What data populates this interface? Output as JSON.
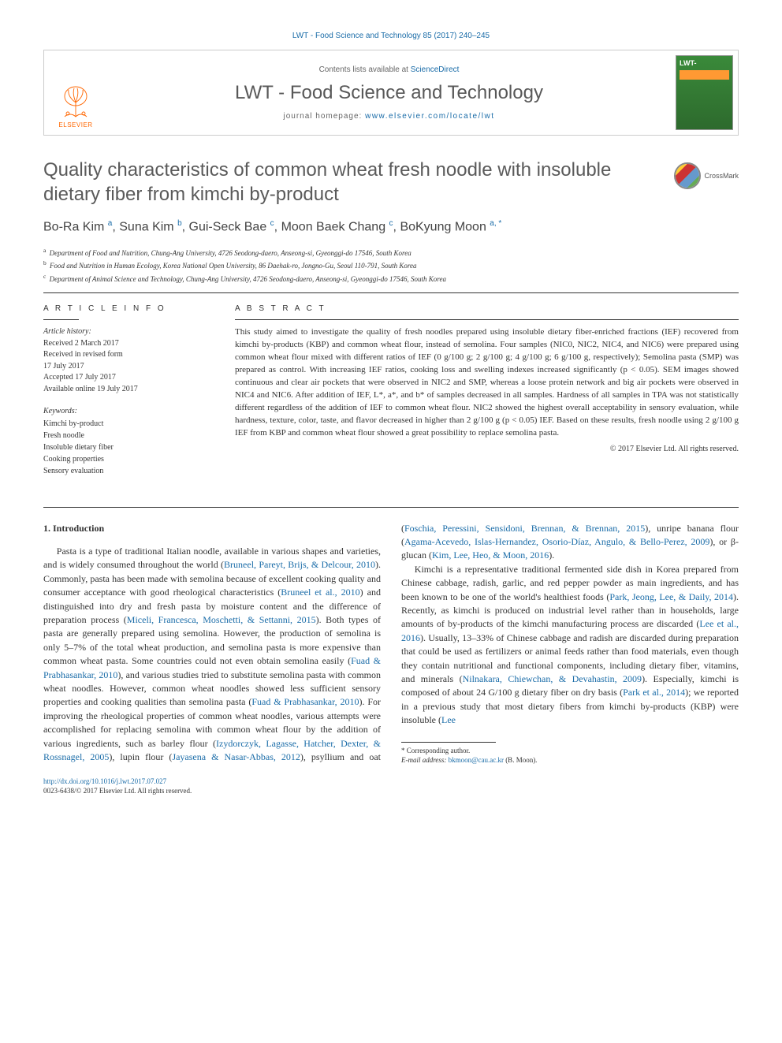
{
  "header": {
    "citation": "LWT - Food Science and Technology 85 (2017) 240–245",
    "contents_prefix": "Contents lists available at ",
    "contents_link": "ScienceDirect",
    "journal_name": "LWT - Food Science and Technology",
    "homepage_prefix": "journal homepage: ",
    "homepage_link": "www.elsevier.com/locate/lwt",
    "publisher": "ELSEVIER"
  },
  "article": {
    "title": "Quality characteristics of common wheat fresh noodle with insoluble dietary fiber from kimchi by-product",
    "crossmark": "CrossMark",
    "authors_html": "Bo-Ra Kim <sup>a</sup>, Suna Kim <sup>b</sup>, Gui-Seck Bae <sup>c</sup>, Moon Baek Chang <sup>c</sup>, BoKyung Moon <sup>a, *</sup>",
    "affiliations": [
      {
        "sup": "a",
        "text": "Department of Food and Nutrition, Chung-Ang University, 4726 Seodong-daero, Anseong-si, Gyeonggi-do 17546, South Korea"
      },
      {
        "sup": "b",
        "text": "Food and Nutrition in Human Ecology, Korea National Open University, 86 Daehak-ro, Jongno-Gu, Seoul 110-791, South Korea"
      },
      {
        "sup": "c",
        "text": "Department of Animal Science and Technology, Chung-Ang University, 4726 Seodong-daero, Anseong-si, Gyeonggi-do 17546, South Korea"
      }
    ]
  },
  "info": {
    "heading": "A R T I C L E   I N F O",
    "history_label": "Article history:",
    "history": [
      "Received 2 March 2017",
      "Received in revised form",
      "17 July 2017",
      "Accepted 17 July 2017",
      "Available online 19 July 2017"
    ],
    "keywords_label": "Keywords:",
    "keywords": [
      "Kimchi by-product",
      "Fresh noodle",
      "Insoluble dietary fiber",
      "Cooking properties",
      "Sensory evaluation"
    ]
  },
  "abstract": {
    "heading": "A B S T R A C T",
    "text": "This study aimed to investigate the quality of fresh noodles prepared using insoluble dietary fiber-enriched fractions (IEF) recovered from kimchi by-products (KBP) and common wheat flour, instead of semolina. Four samples (NIC0, NIC2, NIC4, and NIC6) were prepared using common wheat flour mixed with different ratios of IEF (0 g/100 g; 2 g/100 g; 4 g/100 g; 6 g/100 g, respectively); Semolina pasta (SMP) was prepared as control. With increasing IEF ratios, cooking loss and swelling indexes increased significantly (p < 0.05). SEM images showed continuous and clear air pockets that were observed in NIC2 and SMP, whereas a loose protein network and big air pockets were observed in NIC4 and NIC6. After addition of IEF, L*, a*, and b* of samples decreased in all samples. Hardness of all samples in TPA was not statistically different regardless of the addition of IEF to common wheat flour. NIC2 showed the highest overall acceptability in sensory evaluation, while hardness, texture, color, taste, and flavor decreased in higher than 2 g/100 g (p < 0.05) IEF. Based on these results, fresh noodle using 2 g/100 g IEF from KBP and common wheat flour showed a great possibility to replace semolina pasta.",
    "copyright": "© 2017 Elsevier Ltd. All rights reserved."
  },
  "body": {
    "heading": "1. Introduction",
    "para1_pre": "Pasta is a type of traditional Italian noodle, available in various shapes and varieties, and is widely consumed throughout the world (",
    "para1_ref1": "Bruneel, Pareyt, Brijs, & Delcour, 2010",
    "para1_mid1": "). Commonly, pasta has been made with semolina because of excellent cooking quality and consumer acceptance with good rheological characteristics (",
    "para1_ref2": "Bruneel et al., 2010",
    "para1_mid2": ") and distinguished into dry and fresh pasta by moisture content and the difference of preparation process (",
    "para1_ref3": "Miceli, Francesca, Moschetti, & Settanni, 2015",
    "para1_mid3": "). Both types of pasta are generally prepared using semolina. However, the production of semolina is only 5–7% of the total wheat production, and semolina pasta is more expensive than common wheat pasta. Some countries could not even obtain semolina easily (",
    "para1_ref4": "Fuad & Prabhasankar, 2010",
    "para1_mid4": "), and various studies tried to substitute semolina pasta with common wheat noodles. However, common wheat noodles showed less sufficient sensory properties and cooking qualities than semolina pasta (",
    "para1_ref5": "Fuad & Prabhasankar, 2010",
    "para1_mid5": "). For improving the rheological properties of common wheat noodles, various attempts were accomplished for replacing semolina with common wheat flour by the addition of various ingredients, such as barley flour (",
    "para1_ref6": "Izydorczyk, Lagasse, Hatcher, Dexter, & Rossnagel, 2005",
    "para1_mid6": "), lupin flour (",
    "para1_ref7": "Jayasena & Nasar-Abbas, 2012",
    "para1_mid7": "), psyllium and oat (",
    "para1_ref8": "Foschia, Peressini, Sensidoni, Brennan, & Brennan, 2015",
    "para1_mid8": "), unripe banana flour (",
    "para1_ref9": "Agama-Acevedo, Islas-Hernandez, Osorio-Díaz, Angulo, & Bello-Perez, 2009",
    "para1_mid9": "), or β-glucan (",
    "para1_ref10": "Kim, Lee, Heo, & Moon, 2016",
    "para1_end": ").",
    "para2_pre": "Kimchi is a representative traditional fermented side dish in Korea prepared from Chinese cabbage, radish, garlic, and red pepper powder as main ingredients, and has been known to be one of the world's healthiest foods (",
    "para2_ref1": "Park, Jeong, Lee, & Daily, 2014",
    "para2_mid1": "). Recently, as kimchi is produced on industrial level rather than in households, large amounts of by-products of the kimchi manufacturing process are discarded (",
    "para2_ref2": "Lee et al., 2016",
    "para2_mid2": "). Usually, 13–33% of Chinese cabbage and radish are discarded during preparation that could be used as fertilizers or animal feeds rather than food materials, even though they contain nutritional and functional components, including dietary fiber, vitamins, and minerals (",
    "para2_ref3": "Nilnakara, Chiewchan, & Devahastin, 2009",
    "para2_mid3": "). Especially, kimchi is composed of about 24 G/100 g dietary fiber on dry basis (",
    "para2_ref4": "Park et al., 2014",
    "para2_mid4": "); we reported in a previous study that most dietary fibers from kimchi by-products (KBP) were insoluble (",
    "para2_ref5": "Lee"
  },
  "footnotes": {
    "corr": "* Corresponding author.",
    "email_label": "E-mail address: ",
    "email": "bkmoon@cau.ac.kr",
    "email_suffix": " (B. Moon)."
  },
  "doi": {
    "url": "http://dx.doi.org/10.1016/j.lwt.2017.07.027",
    "issn_line": "0023-6438/© 2017 Elsevier Ltd. All rights reserved."
  },
  "colors": {
    "link": "#1a6ca8",
    "text": "#333333",
    "heading": "#5a5a5a",
    "elsevier_orange": "#ff6600"
  }
}
